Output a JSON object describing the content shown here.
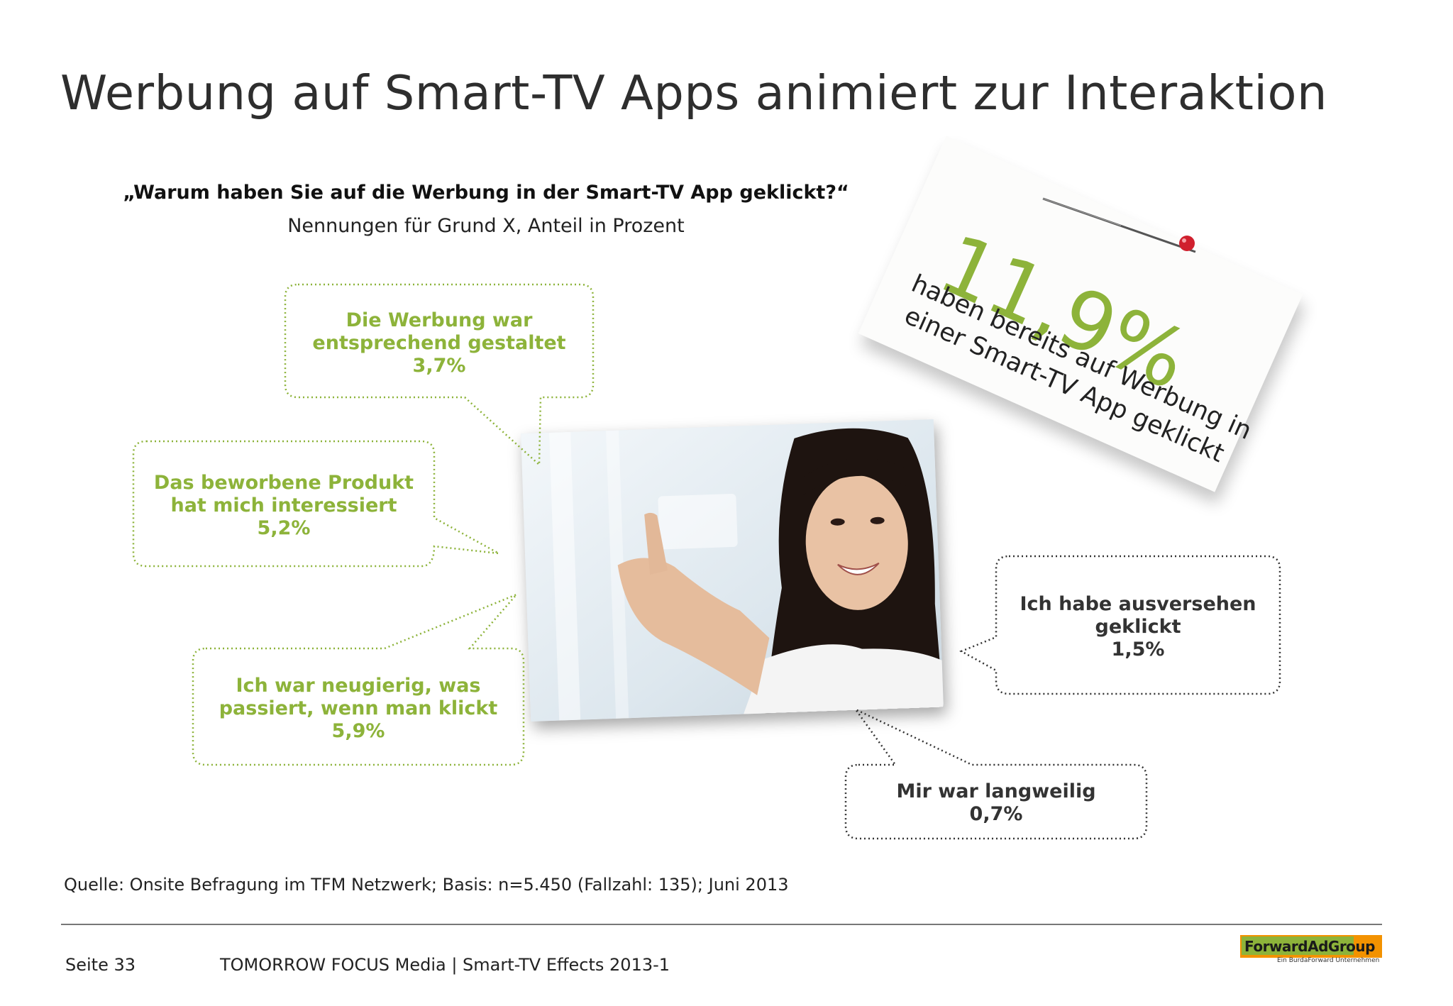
{
  "slide": {
    "title": "Werbung auf Smart-TV Apps animiert zur Interaktion",
    "question": "„Warum haben Sie auf die Werbung in der Smart-TV App geklickt?“",
    "subtitle": "Nennungen für Grund X, Anteil in Prozent"
  },
  "bubbles": [
    {
      "lines": [
        "Die Werbung war",
        "entsprechend gestaltet",
        "3,7%"
      ],
      "value": 3.7
    },
    {
      "lines": [
        "Das beworbene Produkt",
        "hat mich interessiert",
        "5,2%"
      ],
      "value": 5.2
    },
    {
      "lines": [
        "Ich war neugierig, was",
        "passiert, wenn man klickt",
        "5,9%"
      ],
      "value": 5.9
    },
    {
      "lines": [
        "Ich habe ausversehen",
        "geklickt",
        "1,5%"
      ],
      "value": 1.5
    },
    {
      "lines": [
        "Mir war langweilig",
        "0,7%"
      ],
      "value": 0.7
    }
  ],
  "note": {
    "percent": "11,9%",
    "line1": "haben bereits auf Werbung in",
    "line2": "einer Smart-TV App geklickt"
  },
  "source": "Quelle: Onsite Befragung im TFM Netzwerk; Basis: n=5.450 (Fallzahl: 135); Juni 2013",
  "footer": {
    "page": "Seite 33",
    "text": "TOMORROW FOCUS Media  |  Smart-TV Effects 2013-1"
  },
  "logo": {
    "name": "ForwardAdGroup",
    "sub": "Ein BurdaForward Unternehmen"
  },
  "colors": {
    "accent_green": "#8db33a",
    "dark_text": "#333333",
    "logo_orange": "#f39200"
  }
}
